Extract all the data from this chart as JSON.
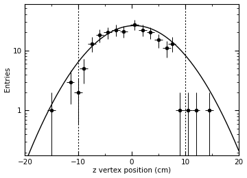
{
  "x_data": [
    -15.0,
    -11.5,
    -10.0,
    -9.0,
    -7.5,
    -6.0,
    -4.5,
    -3.0,
    -1.5,
    0.5,
    2.0,
    3.5,
    5.0,
    6.5,
    7.5,
    9.0,
    10.5,
    12.0,
    14.5
  ],
  "y_data": [
    1.0,
    3.0,
    2.0,
    5.0,
    13.0,
    18.0,
    20.0,
    22.0,
    21.0,
    27.0,
    22.0,
    20.0,
    15.0,
    11.0,
    13.0,
    1.0,
    1.0,
    1.0,
    1.0
  ],
  "y_err_lo": [
    1.0,
    1.7,
    1.4,
    2.2,
    3.6,
    4.2,
    4.5,
    4.7,
    4.6,
    5.2,
    4.7,
    4.5,
    3.9,
    3.3,
    3.6,
    1.0,
    1.0,
    1.0,
    1.0
  ],
  "y_err_hi": [
    1.0,
    1.7,
    1.4,
    2.2,
    3.6,
    4.2,
    4.5,
    4.7,
    4.6,
    5.2,
    4.7,
    4.5,
    3.9,
    3.3,
    3.6,
    1.0,
    1.0,
    1.0,
    1.0
  ],
  "x_err": [
    0.75,
    0.75,
    0.75,
    0.75,
    0.75,
    0.75,
    0.75,
    0.75,
    0.75,
    0.75,
    0.75,
    0.75,
    0.75,
    0.75,
    0.75,
    0.75,
    0.75,
    0.75,
    0.75
  ],
  "gaussian_amplitude": 26.0,
  "gaussian_mean": 0.5,
  "gaussian_sigma": 6.3,
  "xlim": [
    -20,
    20
  ],
  "ylim_log": [
    0.18,
    60
  ],
  "xlabel": "z vertex position (cm)",
  "ylabel": "Entries",
  "vline1": -10,
  "vline2": 10,
  "xticks": [
    -20,
    -10,
    0,
    10,
    20
  ],
  "yticks_major": [
    1,
    10
  ],
  "ytick_labels": [
    "1",
    "10"
  ],
  "background_color": "#ffffff",
  "marker_color": "black",
  "line_color": "black",
  "marker_size": 3.5
}
